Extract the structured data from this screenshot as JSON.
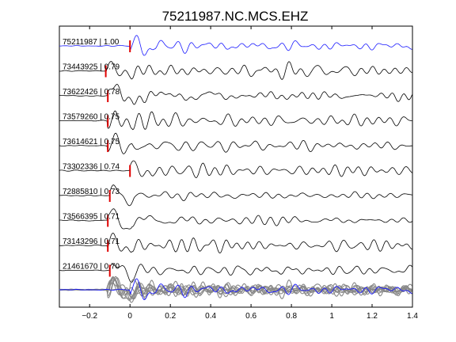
{
  "chart_data": {
    "type": "line",
    "title": "75211987.NC.MCS.EHZ",
    "xlabel": "",
    "ylabel": "",
    "xlim": [
      -0.35,
      1.4
    ],
    "xticks": [
      -0.2,
      0,
      0.2,
      0.4,
      0.6,
      0.8,
      1,
      1.2,
      1.4
    ],
    "xtick_labels": [
      "−0.2",
      "0",
      "0.2",
      "0.4",
      "0.6",
      "0.8",
      "1",
      "1.2",
      "1.4"
    ],
    "grid": false,
    "legend": "none",
    "colors": {
      "reference": "#1a1aff",
      "trace": "#000000",
      "stack": "#888888",
      "pick": "#e00000"
    },
    "traces": [
      {
        "label": "75211987 | 1.00",
        "event_id": "75211987",
        "correlation": 1.0,
        "pick_time": 0.0,
        "reference": true
      },
      {
        "label": "73443925 | 0.79",
        "event_id": "73443925",
        "correlation": 0.79,
        "pick_time": -0.12
      },
      {
        "label": "73622426 | 0.78",
        "event_id": "73622426",
        "correlation": 0.78,
        "pick_time": -0.11
      },
      {
        "label": "73579260 | 0.75",
        "event_id": "73579260",
        "correlation": 0.75,
        "pick_time": -0.11
      },
      {
        "label": "73614621 | 0.75",
        "event_id": "73614621",
        "correlation": 0.75,
        "pick_time": -0.11
      },
      {
        "label": "73302336 | 0.74",
        "event_id": "73302336",
        "correlation": 0.74,
        "pick_time": 0.0
      },
      {
        "label": "72885810 | 0.73",
        "event_id": "72885810",
        "correlation": 0.73,
        "pick_time": -0.1
      },
      {
        "label": "73566395 | 0.71",
        "event_id": "73566395",
        "correlation": 0.71,
        "pick_time": -0.11
      },
      {
        "label": "73143296 | 0.71",
        "event_id": "73143296",
        "correlation": 0.71,
        "pick_time": -0.11
      },
      {
        "label": "21461670 | 0.70",
        "event_id": "21461670",
        "correlation": 0.7,
        "pick_time": -0.1
      }
    ],
    "stack_panel": true
  }
}
